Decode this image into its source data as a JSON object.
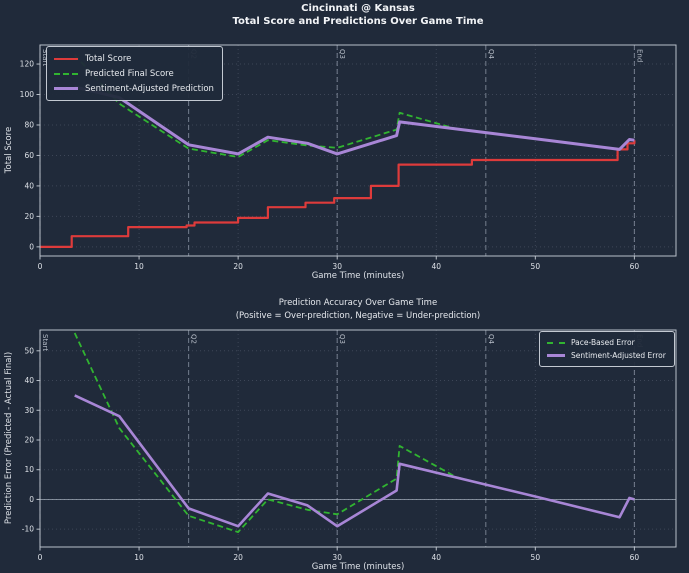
{
  "figure": {
    "title_line1": "Cincinnati @ Kansas",
    "title_line2": "Total Score and Predictions Over Game Time",
    "background_color": "#202a3a",
    "accent_colors": {
      "total_score": "#de3b3b",
      "prediction": "#31b431",
      "sentiment": "#a886d6"
    }
  },
  "chart_data": [
    {
      "type": "line",
      "title": "",
      "xlabel": "Game Time (minutes)",
      "ylabel": "Total Score",
      "xlim": [
        0,
        64.2
      ],
      "ylim": [
        -6,
        132.5
      ],
      "xticks": [
        0,
        10,
        20,
        30,
        40,
        50,
        60
      ],
      "yticks": [
        0,
        20,
        40,
        60,
        80,
        100,
        120
      ],
      "grid": true,
      "legend_position": "upper left",
      "quarter_lines": [
        {
          "x": 0,
          "label": "Start"
        },
        {
          "x": 15,
          "label": "Q2"
        },
        {
          "x": 30,
          "label": "Q3"
        },
        {
          "x": 45,
          "label": "Q4"
        },
        {
          "x": 60,
          "label": "End"
        }
      ],
      "series": [
        {
          "name": "Total Score",
          "color": "#de3b3b",
          "style": "step",
          "width": 2.2,
          "points": [
            [
              0,
              0
            ],
            [
              3.2,
              7
            ],
            [
              8.9,
              13
            ],
            [
              14.8,
              14
            ],
            [
              15.6,
              16
            ],
            [
              20,
              19
            ],
            [
              23,
              26
            ],
            [
              26.8,
              29
            ],
            [
              29.7,
              32
            ],
            [
              33.4,
              40
            ],
            [
              36.2,
              54
            ],
            [
              43.6,
              57
            ],
            [
              58.3,
              64
            ],
            [
              59.3,
              68
            ],
            [
              60,
              70
            ]
          ]
        },
        {
          "name": "Predicted Final Score",
          "color": "#31b431",
          "style": "dashed",
          "width": 1.8,
          "points": [
            [
              3.5,
              126
            ],
            [
              8,
              94
            ],
            [
              15,
              64.5
            ],
            [
              20,
              59
            ],
            [
              23,
              70
            ],
            [
              27,
              66.5
            ],
            [
              30,
              65
            ],
            [
              36,
              77
            ],
            [
              36.3,
              88
            ],
            [
              42,
              77.5
            ],
            [
              45,
              75
            ],
            [
              50,
              71
            ],
            [
              58.5,
              64
            ],
            [
              59.5,
              70.5
            ],
            [
              60,
              70
            ]
          ]
        },
        {
          "name": "Sentiment-Adjusted Prediction",
          "color": "#a886d6",
          "style": "solid",
          "width": 3,
          "points": [
            [
              3.5,
              105
            ],
            [
              8,
              98
            ],
            [
              15,
              67
            ],
            [
              20,
              61
            ],
            [
              23,
              72
            ],
            [
              27,
              68
            ],
            [
              30,
              61
            ],
            [
              36,
              73
            ],
            [
              36.3,
              82
            ],
            [
              45,
              75
            ],
            [
              50,
              71
            ],
            [
              58.5,
              64
            ],
            [
              59.5,
              70.5
            ],
            [
              60,
              70
            ]
          ]
        }
      ]
    },
    {
      "type": "line",
      "title": "Prediction Accuracy Over Game Time",
      "subtitle": "(Positive = Over-prediction, Negative = Under-prediction)",
      "xlabel": "Game Time (minutes)",
      "ylabel": "Prediction Error (Predicted - Actual Final)",
      "xlim": [
        0,
        64.2
      ],
      "ylim": [
        -16,
        57
      ],
      "xticks": [
        0,
        10,
        20,
        30,
        40,
        50,
        60
      ],
      "yticks": [
        -10,
        0,
        10,
        20,
        30,
        40,
        50
      ],
      "grid": true,
      "zero_line": true,
      "legend_position": "upper right",
      "quarter_lines": [
        {
          "x": 0,
          "label": "Start"
        },
        {
          "x": 15,
          "label": "Q2"
        },
        {
          "x": 30,
          "label": "Q3"
        },
        {
          "x": 45,
          "label": "Q4"
        },
        {
          "x": 60,
          "label": "End"
        }
      ],
      "series": [
        {
          "name": "Pace-Based Error",
          "color": "#31b431",
          "style": "dashed",
          "width": 1.8,
          "points": [
            [
              3.5,
              56
            ],
            [
              8,
              24
            ],
            [
              15,
              -5.5
            ],
            [
              20,
              -11
            ],
            [
              23,
              0
            ],
            [
              27,
              -3.5
            ],
            [
              30,
              -5
            ],
            [
              36,
              7
            ],
            [
              36.3,
              18
            ],
            [
              42,
              7.5
            ],
            [
              45,
              5
            ],
            [
              50,
              1
            ],
            [
              58.5,
              -6
            ],
            [
              59.5,
              0.5
            ],
            [
              60,
              0
            ]
          ]
        },
        {
          "name": "Sentiment-Adjusted Error",
          "color": "#a886d6",
          "style": "solid",
          "width": 2.6,
          "points": [
            [
              3.5,
              35
            ],
            [
              8,
              28
            ],
            [
              15,
              -3
            ],
            [
              20,
              -9
            ],
            [
              23,
              2
            ],
            [
              27,
              -2
            ],
            [
              30,
              -9
            ],
            [
              36,
              3
            ],
            [
              36.3,
              12
            ],
            [
              45,
              5
            ],
            [
              50,
              1
            ],
            [
              58.5,
              -6
            ],
            [
              59.5,
              0.5
            ],
            [
              60,
              0
            ]
          ]
        }
      ]
    }
  ]
}
